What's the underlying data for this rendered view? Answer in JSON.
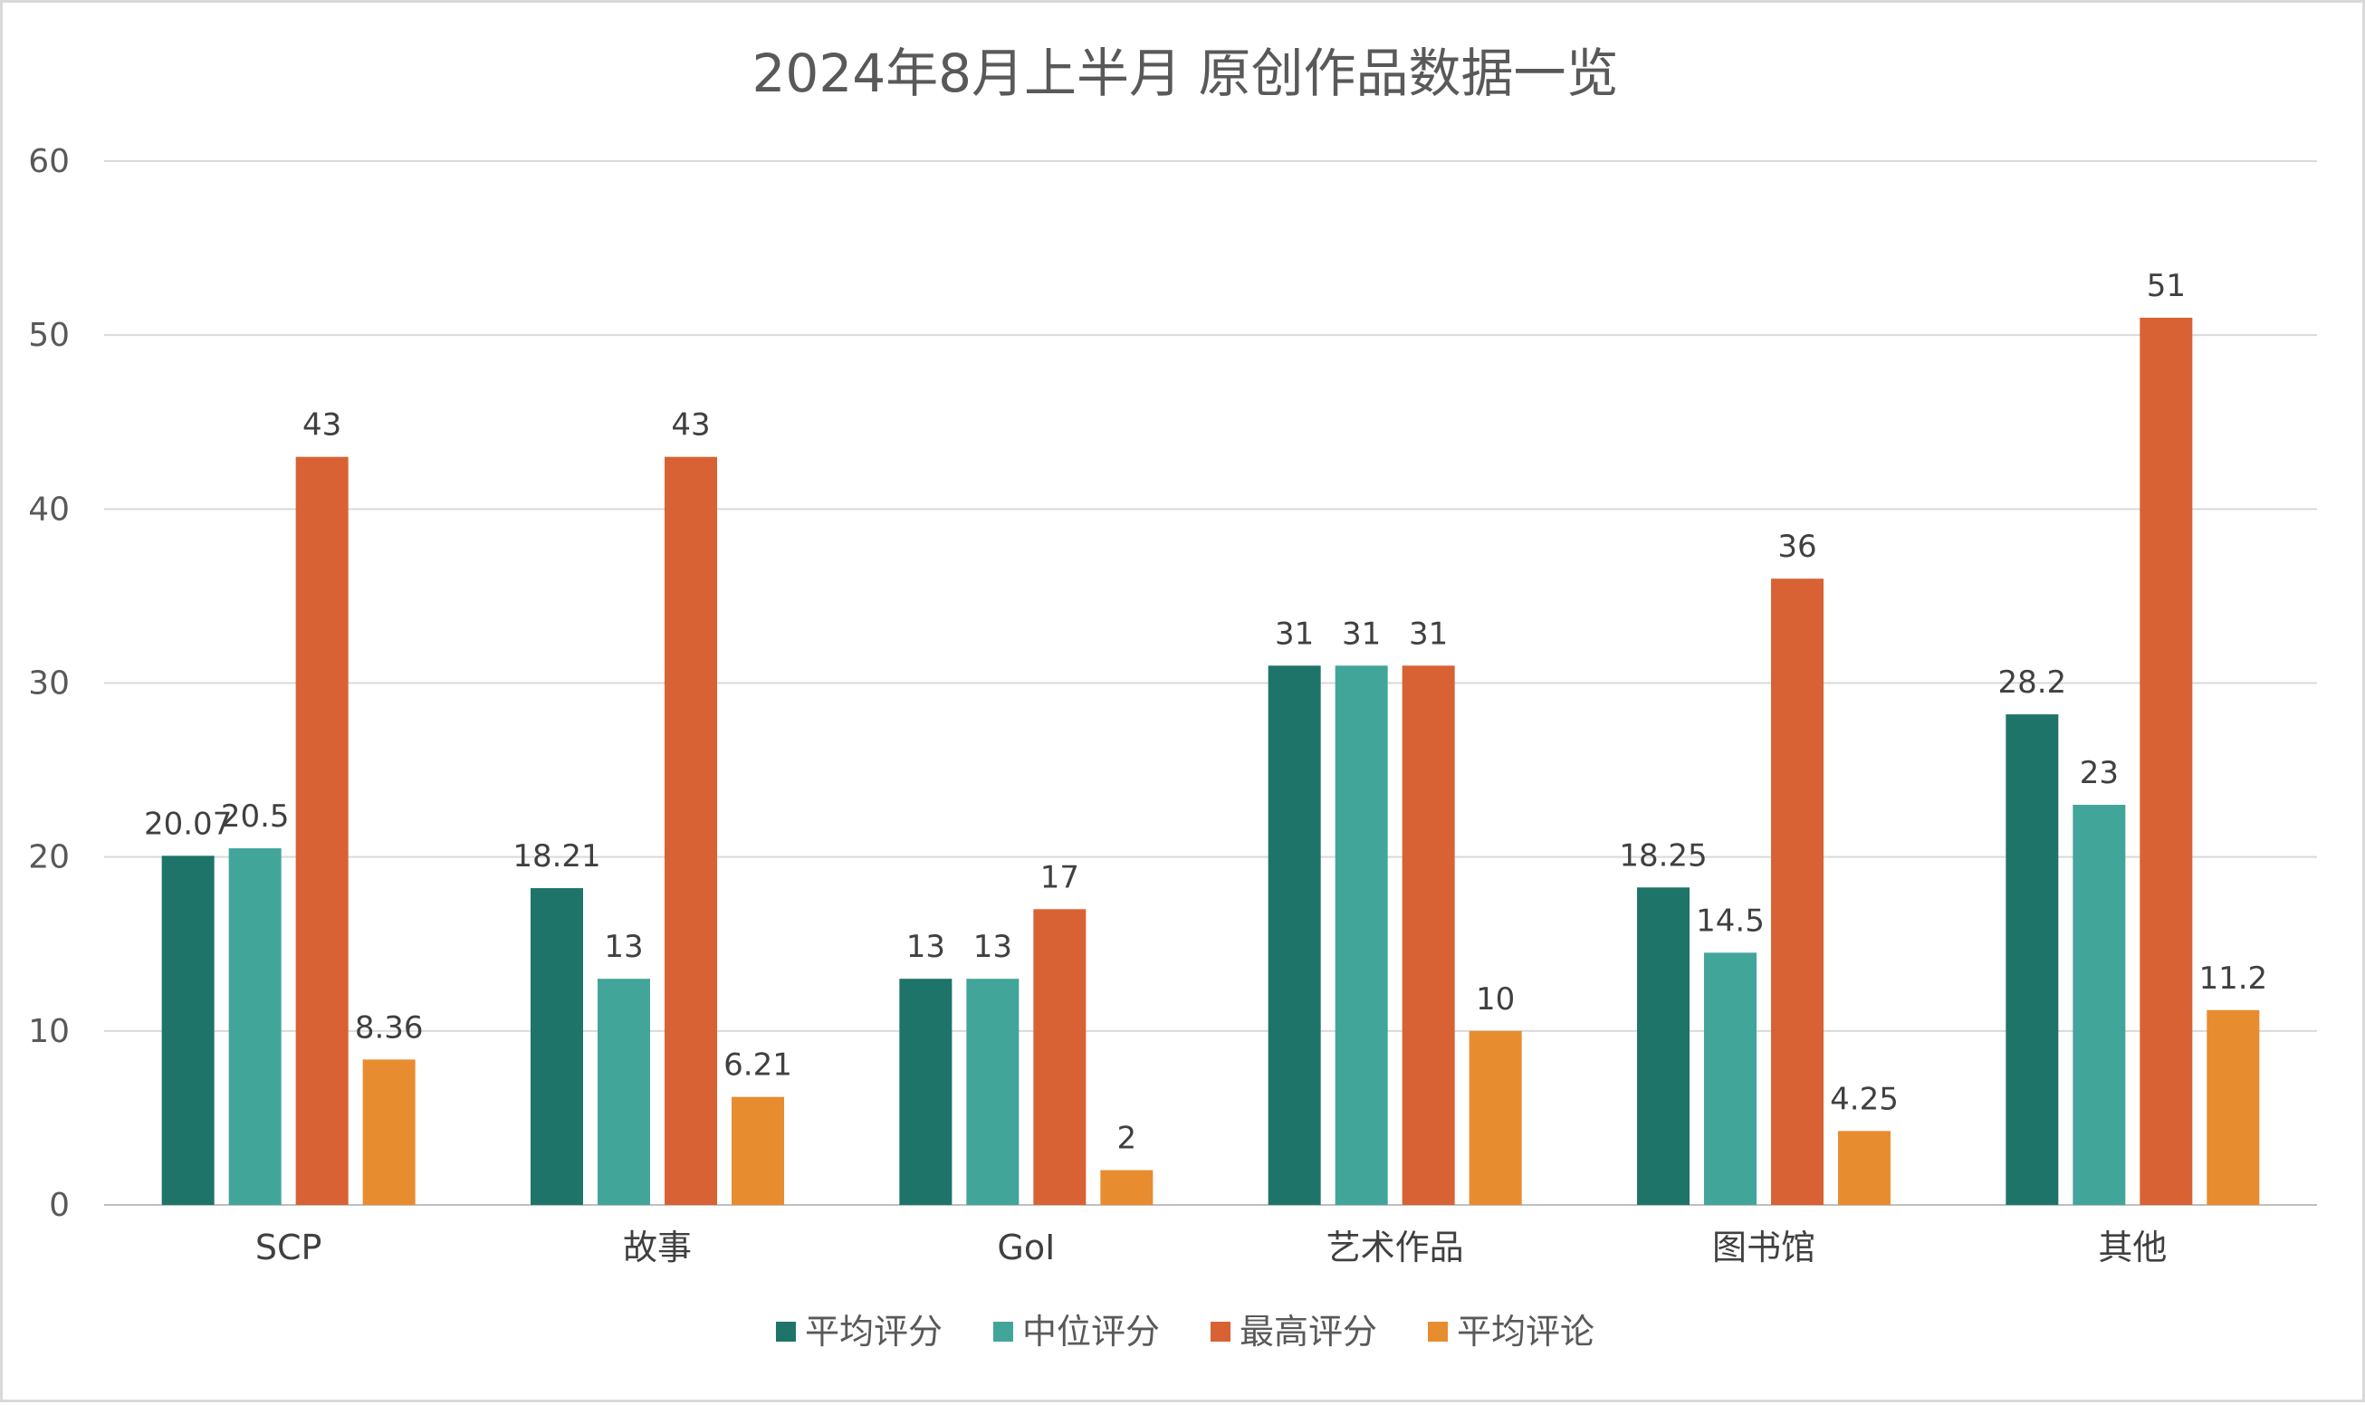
{
  "chart_data": {
    "type": "bar",
    "title": "2024年8月上半月 原创作品数据一览",
    "xlabel": "",
    "ylabel": "",
    "ylim": [
      0,
      60
    ],
    "yticks": [
      0,
      10,
      20,
      30,
      40,
      50,
      60
    ],
    "grid": true,
    "legend_position": "bottom",
    "categories": [
      "SCP",
      "故事",
      "GoI",
      "艺术作品",
      "图书馆",
      "其他"
    ],
    "series": [
      {
        "name": "平均评分",
        "color": "#1e7468",
        "values": [
          20.07,
          18.21,
          13,
          31,
          18.25,
          28.2
        ]
      },
      {
        "name": "中位评分",
        "color": "#42a59a",
        "values": [
          20.5,
          13,
          13,
          31,
          14.5,
          23
        ]
      },
      {
        "name": "最高评分",
        "color": "#d86233",
        "values": [
          43,
          43,
          17,
          31,
          36,
          51
        ]
      },
      {
        "name": "平均评论",
        "color": "#e88c30",
        "values": [
          8.36,
          6.21,
          2,
          10,
          4.25,
          11.2
        ]
      }
    ]
  }
}
